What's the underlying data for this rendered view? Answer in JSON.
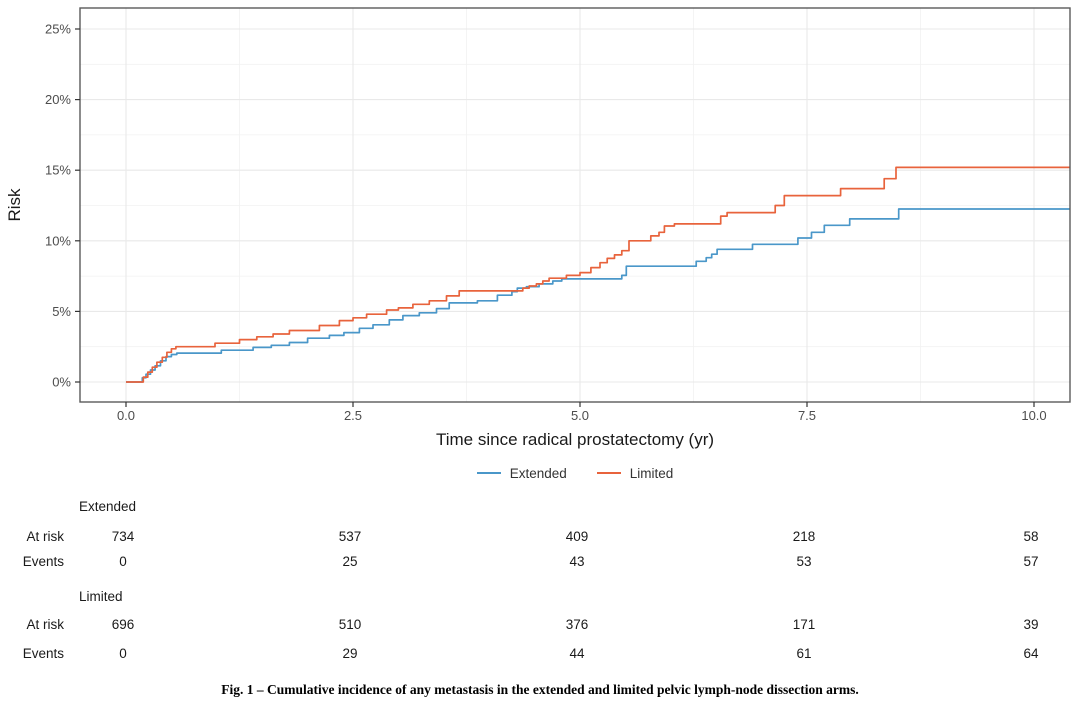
{
  "figure": {
    "caption": "Fig. 1 – Cumulative incidence of any metastasis in the extended and limited pelvic lymph-node dissection arms."
  },
  "colors": {
    "extended": "#4A97C9",
    "limited": "#E8633C",
    "grid_major": "#E9E9E9",
    "grid_minor": "#F2F2F2",
    "panel_border": "#5A5A5A",
    "tick": "#333333",
    "tick_label": "#4D4D4D",
    "axis_title": "#1A1A1A",
    "table_text": "#1A1A1A"
  },
  "chart_data": {
    "type": "line",
    "subtype": "step-cumulative-incidence",
    "title": "",
    "xlabel": "Time since radical prostatectomy (yr)",
    "ylabel": "Risk",
    "xlim": [
      -0.5,
      10.4
    ],
    "ylim": [
      -1.4,
      26.5
    ],
    "grid": true,
    "legend_position": "bottom",
    "x_ticks": {
      "values": [
        0,
        2.5,
        5,
        7.5,
        10
      ],
      "labels": [
        "0.0",
        "2.5",
        "5.0",
        "7.5",
        "10.0"
      ]
    },
    "y_ticks": {
      "values": [
        0,
        5,
        10,
        15,
        20,
        25
      ],
      "labels": [
        "0%",
        "5%",
        "10%",
        "15%",
        "20%",
        "25%"
      ]
    },
    "x_minor_ticks": [
      1.25,
      3.75,
      6.25,
      8.75
    ],
    "y_minor_ticks": [
      2.5,
      7.5,
      12.5,
      17.5,
      22.5
    ],
    "series": [
      {
        "name": "Extended",
        "color_key": "extended",
        "points": [
          [
            0,
            0
          ],
          [
            0.15,
            0
          ],
          [
            0.18,
            0.3
          ],
          [
            0.22,
            0.55
          ],
          [
            0.27,
            0.85
          ],
          [
            0.32,
            1.15
          ],
          [
            0.38,
            1.5
          ],
          [
            0.44,
            1.8
          ],
          [
            0.5,
            1.95
          ],
          [
            0.56,
            2.05
          ],
          [
            1.05,
            2.25
          ],
          [
            1.4,
            2.45
          ],
          [
            1.6,
            2.6
          ],
          [
            1.8,
            2.8
          ],
          [
            2.0,
            3.1
          ],
          [
            2.24,
            3.3
          ],
          [
            2.4,
            3.5
          ],
          [
            2.57,
            3.8
          ],
          [
            2.72,
            4.05
          ],
          [
            2.9,
            4.4
          ],
          [
            3.05,
            4.7
          ],
          [
            3.23,
            4.9
          ],
          [
            3.42,
            5.2
          ],
          [
            3.56,
            5.6
          ],
          [
            3.87,
            5.75
          ],
          [
            4.09,
            6.15
          ],
          [
            4.25,
            6.4
          ],
          [
            4.31,
            6.65
          ],
          [
            4.41,
            6.75
          ],
          [
            4.55,
            6.95
          ],
          [
            4.7,
            7.15
          ],
          [
            4.8,
            7.3
          ],
          [
            5.46,
            7.55
          ],
          [
            5.51,
            8.2
          ],
          [
            6.28,
            8.55
          ],
          [
            6.39,
            8.8
          ],
          [
            6.45,
            9.05
          ],
          [
            6.51,
            9.4
          ],
          [
            6.9,
            9.75
          ],
          [
            7.4,
            10.2
          ],
          [
            7.55,
            10.6
          ],
          [
            7.69,
            11.1
          ],
          [
            7.97,
            11.55
          ],
          [
            8.51,
            12.25
          ],
          [
            10.4,
            12.25
          ]
        ]
      },
      {
        "name": "Limited",
        "color_key": "limited",
        "points": [
          [
            0,
            0
          ],
          [
            0.15,
            0
          ],
          [
            0.19,
            0.35
          ],
          [
            0.24,
            0.7
          ],
          [
            0.29,
            1.05
          ],
          [
            0.34,
            1.4
          ],
          [
            0.4,
            1.75
          ],
          [
            0.45,
            2.1
          ],
          [
            0.5,
            2.35
          ],
          [
            0.55,
            2.5
          ],
          [
            0.98,
            2.75
          ],
          [
            1.25,
            3.0
          ],
          [
            1.44,
            3.2
          ],
          [
            1.62,
            3.4
          ],
          [
            1.8,
            3.65
          ],
          [
            2.13,
            4.0
          ],
          [
            2.35,
            4.35
          ],
          [
            2.5,
            4.55
          ],
          [
            2.65,
            4.8
          ],
          [
            2.87,
            5.1
          ],
          [
            3.0,
            5.25
          ],
          [
            3.16,
            5.5
          ],
          [
            3.34,
            5.75
          ],
          [
            3.53,
            6.1
          ],
          [
            3.67,
            6.45
          ],
          [
            4.37,
            6.65
          ],
          [
            4.44,
            6.8
          ],
          [
            4.52,
            6.95
          ],
          [
            4.59,
            7.15
          ],
          [
            4.66,
            7.35
          ],
          [
            4.85,
            7.55
          ],
          [
            5.0,
            7.75
          ],
          [
            5.12,
            8.1
          ],
          [
            5.22,
            8.45
          ],
          [
            5.3,
            8.75
          ],
          [
            5.38,
            9.0
          ],
          [
            5.46,
            9.3
          ],
          [
            5.54,
            10.0
          ],
          [
            5.78,
            10.35
          ],
          [
            5.87,
            10.6
          ],
          [
            5.93,
            11.05
          ],
          [
            6.04,
            11.2
          ],
          [
            6.55,
            11.75
          ],
          [
            6.62,
            12.0
          ],
          [
            7.15,
            12.5
          ],
          [
            7.25,
            13.2
          ],
          [
            7.87,
            13.7
          ],
          [
            8.35,
            14.4
          ],
          [
            8.48,
            15.2
          ],
          [
            10.4,
            15.2
          ]
        ]
      }
    ]
  },
  "risk_table": {
    "time_points": [
      0,
      2.5,
      5,
      7.5,
      10
    ],
    "groups": [
      {
        "name": "Extended",
        "rows": [
          {
            "label": "At risk",
            "values": [
              734,
              537,
              409,
              218,
              58
            ]
          },
          {
            "label": "Events",
            "values": [
              0,
              25,
              43,
              53,
              57
            ]
          }
        ]
      },
      {
        "name": "Limited",
        "rows": [
          {
            "label": "At risk",
            "values": [
              696,
              510,
              376,
              171,
              39
            ]
          },
          {
            "label": "Events",
            "values": [
              0,
              29,
              44,
              61,
              64
            ]
          }
        ]
      }
    ]
  }
}
